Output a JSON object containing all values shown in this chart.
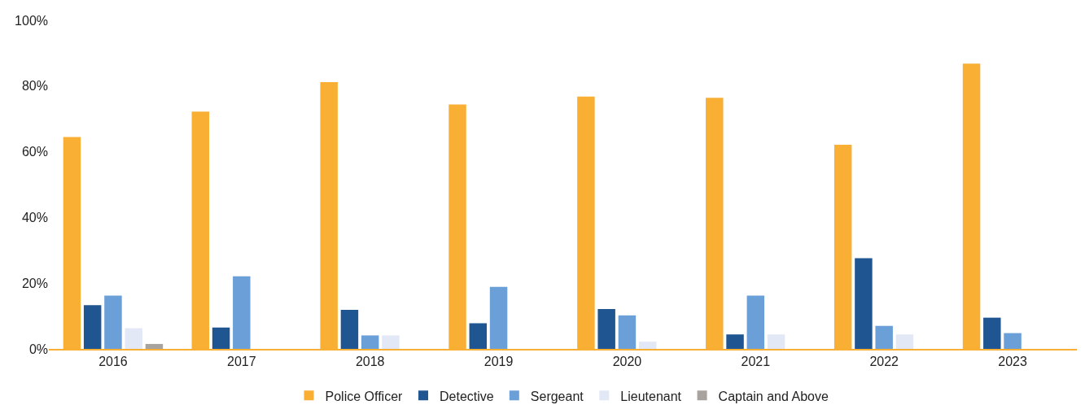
{
  "chart_data": {
    "type": "bar",
    "categories": [
      "2016",
      "2017",
      "2018",
      "2019",
      "2020",
      "2021",
      "2022",
      "2023"
    ],
    "series": [
      {
        "name": "Police Officer",
        "color": "#f9ae34",
        "values": [
          64.5,
          72.2,
          81.2,
          74.4,
          76.8,
          76.4,
          62.1,
          86.8
        ]
      },
      {
        "name": "Detective",
        "color": "#1f5591",
        "values": [
          13.3,
          6.5,
          11.9,
          7.8,
          12.1,
          4.4,
          27.6,
          9.5
        ]
      },
      {
        "name": "Sergeant",
        "color": "#6a9fd7",
        "values": [
          16.2,
          22.1,
          4.1,
          18.9,
          10.2,
          16.2,
          7.0,
          4.8
        ]
      },
      {
        "name": "Lieutenant",
        "color": "#e2e8f5",
        "values": [
          6.3,
          0,
          4.1,
          0,
          2.2,
          4.4,
          4.4,
          0
        ]
      },
      {
        "name": "Captain and Above",
        "color": "#a8a39f",
        "values": [
          1.5,
          0,
          0,
          0,
          0,
          0,
          0,
          0
        ]
      }
    ],
    "ylim": [
      0,
      100
    ],
    "yticks": [
      {
        "value": 0,
        "label": "0%"
      },
      {
        "value": 20,
        "label": "20%"
      },
      {
        "value": 40,
        "label": "40%"
      },
      {
        "value": 60,
        "label": "60%"
      },
      {
        "value": 80,
        "label": "80%"
      },
      {
        "value": 100,
        "label": "100%"
      }
    ],
    "legend": "bottom"
  }
}
